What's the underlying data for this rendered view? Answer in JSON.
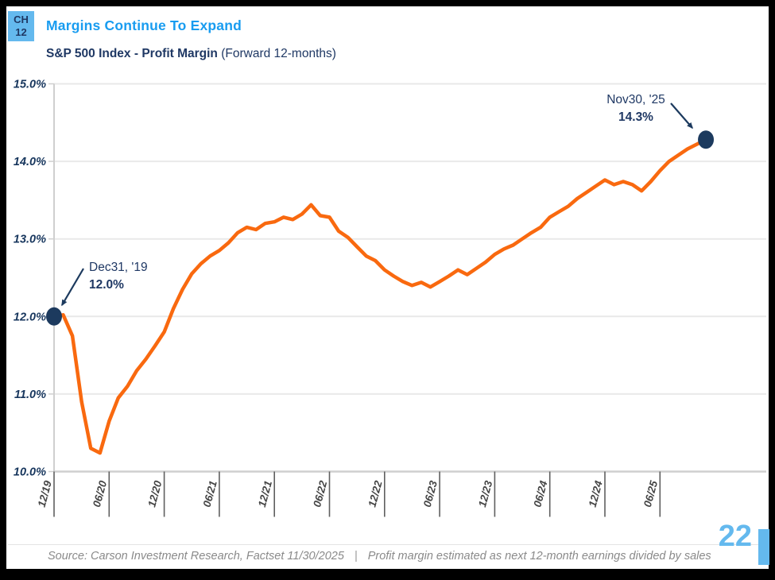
{
  "header": {
    "badge_line1": "CH",
    "badge_line2": "12",
    "title": "Margins Continue To Expand",
    "subtitle_bold": "S&P 500 Index - Profit Margin",
    "subtitle_normal": " (Forward 12-months)"
  },
  "chart_data": {
    "type": "line",
    "title": "S&P 500 Index - Profit Margin (Forward 12-months)",
    "frequency": "monthly",
    "start_month": "2019-12",
    "end_month": "2025-11",
    "x_tick_labels": [
      "12/19",
      "06/20",
      "12/20",
      "06/21",
      "12/21",
      "06/22",
      "12/22",
      "06/23",
      "12/23",
      "06/24",
      "12/24",
      "06/25"
    ],
    "y_ticks": [
      {
        "value": 15.0,
        "label": "15.0%"
      },
      {
        "value": 14.0,
        "label": "14.0%"
      },
      {
        "value": 13.0,
        "label": "13.0%"
      },
      {
        "value": 12.0,
        "label": "12.0%"
      },
      {
        "value": 11.0,
        "label": "11.0%"
      },
      {
        "value": 10.0,
        "label": "10.0%"
      }
    ],
    "ylim": [
      10.0,
      15.0
    ],
    "grid": "horizontal",
    "legend": "none",
    "series": [
      {
        "name": "S&P 500 forward 12-month profit margin (%)",
        "values": [
          12.0,
          12.02,
          11.75,
          10.9,
          10.3,
          10.24,
          10.65,
          10.95,
          11.1,
          11.3,
          11.45,
          11.62,
          11.8,
          12.1,
          12.35,
          12.55,
          12.68,
          12.78,
          12.85,
          12.95,
          13.08,
          13.15,
          13.12,
          13.2,
          13.22,
          13.28,
          13.25,
          13.32,
          13.44,
          13.3,
          13.28,
          13.1,
          13.02,
          12.9,
          12.78,
          12.72,
          12.6,
          12.52,
          12.45,
          12.4,
          12.44,
          12.38,
          12.45,
          12.52,
          12.6,
          12.54,
          12.62,
          12.7,
          12.8,
          12.87,
          12.92,
          13.0,
          13.08,
          13.15,
          13.28,
          13.35,
          13.42,
          13.52,
          13.6,
          13.68,
          13.76,
          13.7,
          13.74,
          13.7,
          13.62,
          13.74,
          13.88,
          14.0,
          14.08,
          14.16,
          14.22,
          14.28
        ]
      }
    ],
    "annotations": [
      {
        "label_line1": "Dec31, '19",
        "label_line2": "12.0%",
        "point": {
          "month_index": 0,
          "value": 12.0
        }
      },
      {
        "label_line1": "Nov30, '25",
        "label_line2": "14.3%",
        "point": {
          "month_index": 71,
          "value": 14.28
        }
      }
    ]
  },
  "footer": {
    "source_left": "Source: Carson Investment Research, Factset  11/30/2025",
    "separator": "|",
    "source_right": "Profit margin estimated as next 12-month earnings divided by sales",
    "page_number": "22"
  },
  "colors": {
    "title_blue": "#189CF0",
    "navy": "#1C3A5E",
    "navy_text": "#1F3864",
    "line_orange": "#F9690F",
    "grid_gray": "#E9E9E9",
    "axis_gray": "#CFCFCF",
    "tick_gray": "#5F5F5F",
    "page_blue": "#64B9EE",
    "source_gray": "#8A8A8A"
  }
}
